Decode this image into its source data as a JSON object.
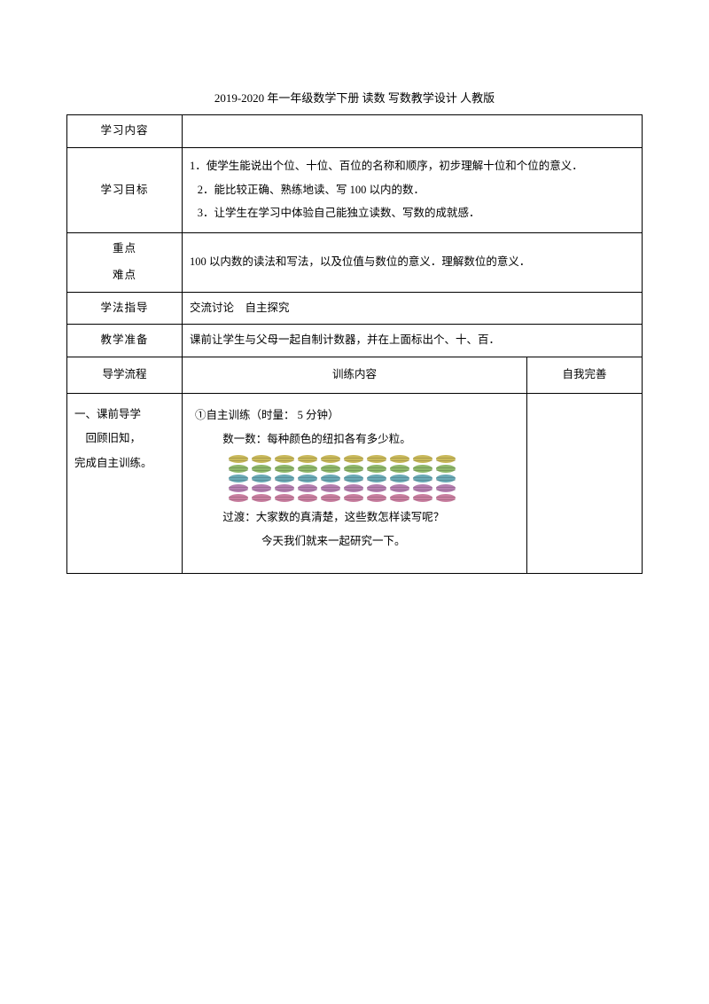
{
  "title": "2019-2020 年一年级数学下册 读数 写数教学设计 人教版",
  "rows": {
    "content_label": "学习内容",
    "content_value": "",
    "goals_label": "学习目标",
    "goals": [
      "1．使学生能说出个位、十位、百位的名称和顺序，初步理解十位和个位的意义．",
      "2．能比较正确、熟练地读、写 100 以内的数．",
      "3．让学生在学习中体验自己能独立读数、写数的成就感．"
    ],
    "keypoints_label_1": "重点",
    "keypoints_label_2": "难点",
    "keypoints_value": "100 以内数的读法和写法，以及位值与数位的意义．理解数位的意义．",
    "method_label": "学法指导",
    "method_value": "交流讨论　自主探究",
    "prep_label": "教学准备",
    "prep_value": "课前让学生与父母一起自制计数器，并在上面标出个、十、百．",
    "flow_header": "导学流程",
    "training_header": "训练内容",
    "improve_header": "自我完善",
    "flow_left_1": "一、课前导学",
    "flow_left_2": "回顾旧知，",
    "flow_left_3": "完成自主训练。",
    "training": {
      "l1": "①自主训练（时量：  5 分钟）",
      "l2": "数一数：每种颜色的纽扣各有多少粒。",
      "l3": "过渡：大家数的真清楚，这些数怎样读写呢？",
      "l4": "今天我们就来一起研究一下。"
    }
  },
  "buttons": {
    "colors": [
      "#c9b95a",
      "#8fb76a",
      "#6aa9b5",
      "#b57fb0",
      "#c97fa0"
    ],
    "cols": 10
  }
}
